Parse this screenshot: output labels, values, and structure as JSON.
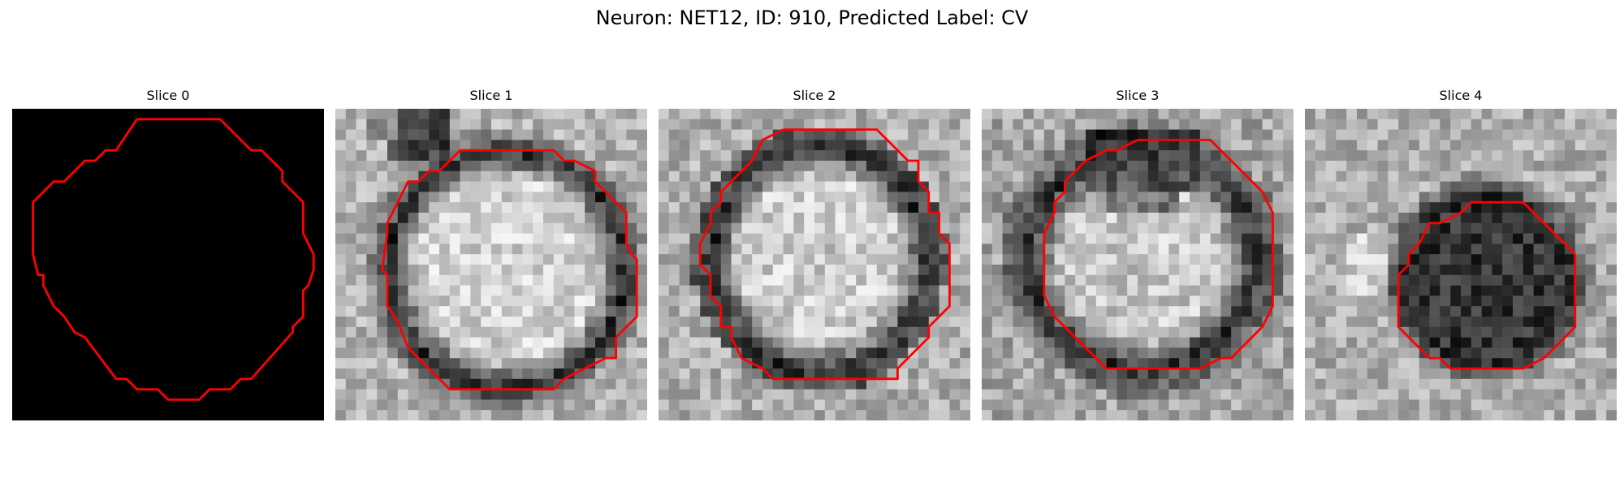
{
  "figure": {
    "title": "Neuron: NET12, ID: 910, Predicted Label: CV"
  },
  "panels": [
    {
      "title": "Slice 0",
      "style": "mask"
    },
    {
      "title": "Slice 1",
      "style": "bright-cell"
    },
    {
      "title": "Slice 2",
      "style": "bright-cell-ring"
    },
    {
      "title": "Slice 3",
      "style": "bright-cell-dark-top"
    },
    {
      "title": "Slice 4",
      "style": "dark-cell"
    }
  ],
  "colors": {
    "contour": "#ff0000",
    "background": "#ffffff",
    "mask": "#000000"
  }
}
